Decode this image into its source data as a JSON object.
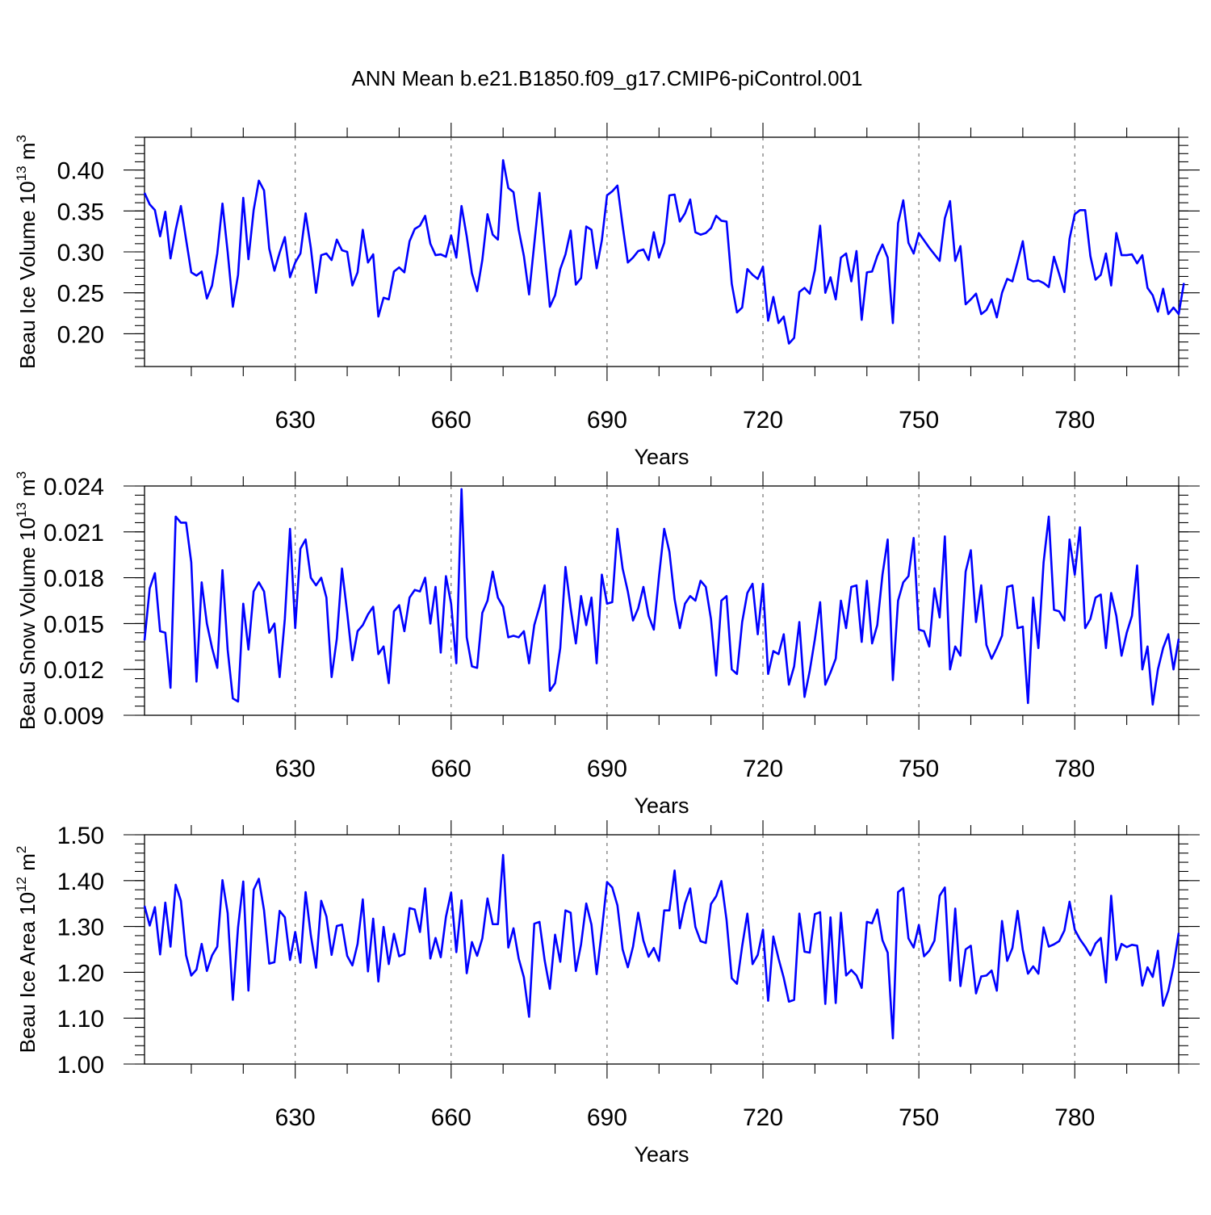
{
  "title": "ANN Mean b.e21.B1850.f09_g17.CMIP6-piControl.001",
  "colors": {
    "line": "#0000ff",
    "grid": "#555555",
    "axis": "#000000"
  },
  "chart_data": [
    {
      "type": "line",
      "name": "ice-volume",
      "ylabel_main": "Beau Ice Volume 10",
      "ylabel_exp": "13",
      "ylabel_unit": "m",
      "ylabel_unit_exp": "3",
      "xlabel": "Years",
      "xlim": [
        601,
        800
      ],
      "ylim": [
        0.16,
        0.44
      ],
      "yticks": [
        "0.20",
        "0.25",
        "0.30",
        "0.35",
        "0.40"
      ],
      "yticks_values": [
        0.2,
        0.25,
        0.3,
        0.35,
        0.4
      ],
      "xticks": [
        "630",
        "660",
        "690",
        "720",
        "750",
        "780"
      ],
      "xticks_values": [
        630,
        660,
        690,
        720,
        750,
        780
      ],
      "x_start": 601,
      "values": [
        0.372,
        0.358,
        0.351,
        0.319,
        0.349,
        0.292,
        0.327,
        0.356,
        0.315,
        0.275,
        0.271,
        0.276,
        0.243,
        0.259,
        0.298,
        0.359,
        0.3,
        0.233,
        0.272,
        0.366,
        0.291,
        0.351,
        0.387,
        0.375,
        0.304,
        0.277,
        0.299,
        0.318,
        0.269,
        0.287,
        0.298,
        0.347,
        0.305,
        0.25,
        0.296,
        0.298,
        0.29,
        0.315,
        0.302,
        0.3,
        0.259,
        0.275,
        0.327,
        0.287,
        0.297,
        0.221,
        0.244,
        0.242,
        0.276,
        0.281,
        0.275,
        0.313,
        0.328,
        0.332,
        0.344,
        0.31,
        0.296,
        0.297,
        0.294,
        0.32,
        0.293,
        0.356,
        0.319,
        0.274,
        0.252,
        0.29,
        0.346,
        0.321,
        0.315,
        0.412,
        0.378,
        0.373,
        0.327,
        0.295,
        0.248,
        0.31,
        0.372,
        0.302,
        0.233,
        0.247,
        0.279,
        0.297,
        0.326,
        0.26,
        0.268,
        0.331,
        0.327,
        0.28,
        0.314,
        0.369,
        0.374,
        0.381,
        0.332,
        0.287,
        0.293,
        0.301,
        0.303,
        0.29,
        0.324,
        0.293,
        0.311,
        0.369,
        0.37,
        0.337,
        0.347,
        0.364,
        0.324,
        0.321,
        0.323,
        0.329,
        0.344,
        0.338,
        0.337,
        0.261,
        0.226,
        0.232,
        0.279,
        0.272,
        0.267,
        0.282,
        0.216,
        0.245,
        0.213,
        0.221,
        0.188,
        0.195,
        0.251,
        0.256,
        0.249,
        0.278,
        0.332,
        0.25,
        0.269,
        0.242,
        0.293,
        0.298,
        0.264,
        0.301,
        0.217,
        0.275,
        0.276,
        0.295,
        0.309,
        0.293,
        0.213,
        0.335,
        0.363,
        0.311,
        0.298,
        0.323,
        0.314,
        0.305,
        0.297,
        0.289,
        0.341,
        0.362,
        0.289,
        0.307,
        0.236,
        0.242,
        0.249,
        0.224,
        0.229,
        0.242,
        0.22,
        0.25,
        0.267,
        0.264,
        0.288,
        0.313,
        0.267,
        0.264,
        0.265,
        0.262,
        0.257,
        0.294,
        0.273,
        0.251,
        0.316,
        0.346,
        0.351,
        0.351,
        0.295,
        0.266,
        0.272,
        0.298,
        0.259,
        0.323,
        0.296,
        0.296,
        0.297,
        0.286,
        0.296,
        0.256,
        0.247,
        0.227,
        0.255,
        0.224,
        0.232,
        0.224,
        0.262
      ]
    },
    {
      "type": "line",
      "name": "snow-volume",
      "ylabel_main": "Beau Snow Volume 10",
      "ylabel_exp": "13",
      "ylabel_unit": "m",
      "ylabel_unit_exp": "3",
      "xlabel": "Years",
      "xlim": [
        601,
        800
      ],
      "ylim": [
        0.009,
        0.024
      ],
      "yticks": [
        "0.009",
        "0.012",
        "0.015",
        "0.018",
        "0.021",
        "0.024"
      ],
      "yticks_values": [
        0.009,
        0.012,
        0.015,
        0.018,
        0.021,
        0.024
      ],
      "xticks": [
        "630",
        "660",
        "690",
        "720",
        "750",
        "780"
      ],
      "xticks_values": [
        630,
        660,
        690,
        720,
        750,
        780
      ],
      "x_start": 601,
      "values": [
        0.0139,
        0.0173,
        0.0183,
        0.0145,
        0.0144,
        0.0108,
        0.022,
        0.0216,
        0.0216,
        0.019,
        0.0112,
        0.0177,
        0.015,
        0.0134,
        0.0121,
        0.0185,
        0.0133,
        0.0101,
        0.0099,
        0.0163,
        0.0133,
        0.0171,
        0.0177,
        0.0171,
        0.0144,
        0.015,
        0.0115,
        0.0153,
        0.0212,
        0.0147,
        0.0199,
        0.0205,
        0.018,
        0.0175,
        0.018,
        0.0167,
        0.0115,
        0.014,
        0.0186,
        0.0157,
        0.0126,
        0.0145,
        0.0149,
        0.0156,
        0.0161,
        0.013,
        0.0135,
        0.0111,
        0.0158,
        0.0162,
        0.0145,
        0.0167,
        0.0172,
        0.0171,
        0.018,
        0.015,
        0.0174,
        0.0131,
        0.0181,
        0.0163,
        0.0124,
        0.0238,
        0.0141,
        0.0122,
        0.0121,
        0.0157,
        0.0165,
        0.0184,
        0.0167,
        0.0161,
        0.0141,
        0.0142,
        0.0141,
        0.0145,
        0.0124,
        0.0149,
        0.0161,
        0.0175,
        0.0106,
        0.0111,
        0.0134,
        0.0187,
        0.016,
        0.0137,
        0.0168,
        0.0149,
        0.0167,
        0.0124,
        0.0182,
        0.0163,
        0.0164,
        0.0212,
        0.0186,
        0.0171,
        0.0152,
        0.016,
        0.0174,
        0.0155,
        0.0146,
        0.0181,
        0.0212,
        0.0197,
        0.0166,
        0.0147,
        0.0163,
        0.0168,
        0.0165,
        0.0178,
        0.0174,
        0.0153,
        0.0116,
        0.0165,
        0.0168,
        0.012,
        0.0117,
        0.0151,
        0.017,
        0.0176,
        0.0143,
        0.0176,
        0.0117,
        0.0132,
        0.013,
        0.0143,
        0.011,
        0.0122,
        0.0151,
        0.0102,
        0.0119,
        0.014,
        0.0164,
        0.011,
        0.0118,
        0.0127,
        0.0165,
        0.0147,
        0.0174,
        0.0175,
        0.0138,
        0.0178,
        0.0137,
        0.0149,
        0.0182,
        0.0205,
        0.0113,
        0.0165,
        0.0177,
        0.0181,
        0.0206,
        0.0146,
        0.0145,
        0.0135,
        0.0173,
        0.0154,
        0.0207,
        0.012,
        0.0135,
        0.0129,
        0.0184,
        0.0198,
        0.0151,
        0.0175,
        0.0136,
        0.0127,
        0.0134,
        0.0142,
        0.0174,
        0.0175,
        0.0147,
        0.0148,
        0.0098,
        0.0167,
        0.0134,
        0.019,
        0.022,
        0.0159,
        0.0158,
        0.0152,
        0.0205,
        0.0182,
        0.0213,
        0.0147,
        0.0153,
        0.0167,
        0.0169,
        0.0134,
        0.017,
        0.0155,
        0.0129,
        0.0144,
        0.0155,
        0.0188,
        0.012,
        0.0135,
        0.0097,
        0.012,
        0.0134,
        0.0143,
        0.012,
        0.014
      ]
    },
    {
      "type": "line",
      "name": "ice-area",
      "ylabel_main": "Beau Ice Area 10",
      "ylabel_exp": "12",
      "ylabel_unit": "m",
      "ylabel_unit_exp": "2",
      "xlabel": "Years",
      "xlim": [
        601,
        800
      ],
      "ylim": [
        1.0,
        1.5
      ],
      "yticks": [
        "1.00",
        "1.10",
        "1.20",
        "1.30",
        "1.40",
        "1.50"
      ],
      "yticks_values": [
        1.0,
        1.1,
        1.2,
        1.3,
        1.4,
        1.5
      ],
      "xticks": [
        "630",
        "660",
        "690",
        "720",
        "750",
        "780"
      ],
      "xticks_values": [
        630,
        660,
        690,
        720,
        750,
        780
      ],
      "x_start": 601,
      "values": [
        1.345,
        1.302,
        1.342,
        1.239,
        1.352,
        1.256,
        1.391,
        1.356,
        1.237,
        1.193,
        1.206,
        1.262,
        1.203,
        1.237,
        1.256,
        1.401,
        1.329,
        1.14,
        1.298,
        1.398,
        1.16,
        1.38,
        1.404,
        1.335,
        1.219,
        1.222,
        1.334,
        1.32,
        1.227,
        1.288,
        1.221,
        1.375,
        1.281,
        1.21,
        1.356,
        1.322,
        1.238,
        1.301,
        1.304,
        1.236,
        1.215,
        1.262,
        1.359,
        1.202,
        1.317,
        1.18,
        1.299,
        1.218,
        1.284,
        1.235,
        1.24,
        1.34,
        1.337,
        1.288,
        1.383,
        1.23,
        1.275,
        1.233,
        1.321,
        1.374,
        1.244,
        1.357,
        1.198,
        1.266,
        1.236,
        1.274,
        1.361,
        1.305,
        1.305,
        1.456,
        1.254,
        1.296,
        1.23,
        1.189,
        1.103,
        1.306,
        1.31,
        1.226,
        1.164,
        1.282,
        1.223,
        1.335,
        1.33,
        1.203,
        1.261,
        1.35,
        1.304,
        1.196,
        1.291,
        1.397,
        1.385,
        1.346,
        1.25,
        1.211,
        1.256,
        1.33,
        1.269,
        1.234,
        1.253,
        1.225,
        1.335,
        1.335,
        1.422,
        1.296,
        1.35,
        1.383,
        1.299,
        1.268,
        1.264,
        1.349,
        1.366,
        1.399,
        1.314,
        1.187,
        1.175,
        1.257,
        1.328,
        1.218,
        1.238,
        1.293,
        1.138,
        1.278,
        1.23,
        1.188,
        1.136,
        1.14,
        1.328,
        1.245,
        1.243,
        1.327,
        1.331,
        1.131,
        1.32,
        1.133,
        1.33,
        1.193,
        1.205,
        1.193,
        1.166,
        1.31,
        1.307,
        1.337,
        1.27,
        1.243,
        1.056,
        1.375,
        1.384,
        1.274,
        1.254,
        1.303,
        1.235,
        1.247,
        1.269,
        1.367,
        1.385,
        1.182,
        1.339,
        1.17,
        1.25,
        1.258,
        1.154,
        1.191,
        1.193,
        1.204,
        1.16,
        1.312,
        1.225,
        1.253,
        1.334,
        1.249,
        1.197,
        1.213,
        1.197,
        1.298,
        1.256,
        1.261,
        1.268,
        1.291,
        1.354,
        1.293,
        1.272,
        1.256,
        1.237,
        1.263,
        1.275,
        1.178,
        1.367,
        1.227,
        1.262,
        1.255,
        1.26,
        1.258,
        1.171,
        1.211,
        1.19,
        1.247,
        1.127,
        1.16,
        1.213,
        1.286
      ]
    }
  ]
}
